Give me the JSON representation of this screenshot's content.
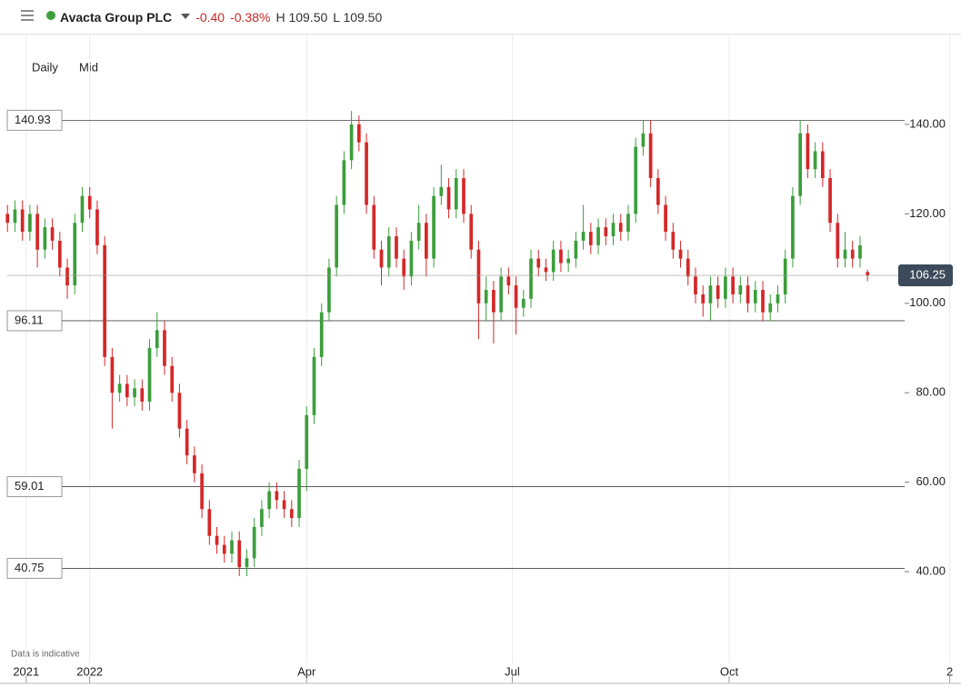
{
  "header": {
    "title": "Avacta Group PLC",
    "change": "-0.40",
    "change_pct": "-0.38%",
    "high": "H 109.50",
    "low": "L 109.50"
  },
  "chart_data": {
    "type": "candlestick",
    "interval": "Daily",
    "price_type": "Mid",
    "note": "Data is indicative",
    "up_color": "#3c9e3c",
    "down_color": "#d62728",
    "xlim": [
      -2,
      255
    ],
    "ylim": [
      19.5,
      160.1
    ],
    "xticks": [
      {
        "value": 5,
        "label": "2021"
      },
      {
        "value": 22,
        "label": "2022"
      },
      {
        "value": 80,
        "label": "Apr"
      },
      {
        "value": 135,
        "label": "Jul"
      },
      {
        "value": 193,
        "label": "Oct"
      },
      {
        "value": 252,
        "label": "2"
      }
    ],
    "yticks": [
      {
        "value": 40,
        "label": "40.00"
      },
      {
        "value": 60,
        "label": "60.00"
      },
      {
        "value": 80,
        "label": "80.00"
      },
      {
        "value": 100,
        "label": "100.00"
      },
      {
        "value": 120,
        "label": "120.00"
      },
      {
        "value": 140,
        "label": "140.00"
      }
    ],
    "reference_lines": [
      140.93,
      96.11,
      59.01,
      40.75
    ],
    "grid": true,
    "x": [
      0,
      2,
      4,
      6,
      8,
      10,
      12,
      14,
      16,
      18,
      20,
      22,
      24,
      26,
      28,
      30,
      32,
      34,
      36,
      38,
      40,
      42,
      44,
      46,
      48,
      50,
      52,
      54,
      56,
      58,
      60,
      62,
      64,
      66,
      68,
      70,
      72,
      74,
      76,
      78,
      80,
      82,
      84,
      86,
      88,
      90,
      92,
      94,
      96,
      98,
      100,
      102,
      104,
      106,
      108,
      110,
      112,
      114,
      116,
      118,
      120,
      122,
      124,
      126,
      128,
      130,
      132,
      134,
      136,
      138,
      140,
      142,
      144,
      146,
      148,
      150,
      152,
      154,
      156,
      158,
      160,
      162,
      164,
      166,
      168,
      170,
      172,
      174,
      176,
      178,
      180,
      182,
      184,
      186,
      188,
      190,
      192,
      194,
      196,
      198,
      200,
      202,
      204,
      206,
      208,
      210,
      212,
      214,
      216,
      218,
      220,
      222,
      224,
      226,
      228,
      230
    ],
    "open": [
      120,
      118,
      121,
      116,
      120,
      112,
      117,
      114,
      108,
      104,
      118,
      124,
      121,
      113,
      88,
      80,
      82,
      79,
      81,
      78,
      90,
      94,
      86,
      80,
      72,
      66,
      62,
      54,
      48,
      46,
      44,
      47,
      41,
      43,
      50,
      54,
      58,
      56,
      54,
      52,
      63,
      75,
      88,
      98,
      108,
      122,
      132,
      140,
      136,
      122,
      112,
      108,
      115,
      110,
      106,
      114,
      118,
      110,
      124,
      126,
      121,
      128,
      120,
      112,
      100,
      103,
      98,
      106,
      104,
      99,
      101,
      110,
      108,
      107,
      112,
      109,
      110,
      114,
      116,
      113,
      117,
      115,
      118,
      116,
      120,
      135,
      138,
      128,
      122,
      116,
      112,
      110,
      106,
      102,
      100,
      104,
      101,
      106,
      102,
      104,
      100,
      103,
      98,
      100,
      102,
      110,
      124,
      138,
      130,
      134,
      128,
      118,
      110,
      112,
      110,
      107
    ],
    "high": [
      122,
      123,
      123,
      122,
      122,
      119,
      119,
      116,
      110,
      120,
      126,
      126,
      123,
      115,
      90,
      84,
      84,
      83,
      83,
      92,
      98,
      96,
      88,
      82,
      74,
      68,
      64,
      56,
      50,
      48,
      49,
      49,
      45,
      52,
      56,
      60,
      60,
      58,
      56,
      65,
      77,
      90,
      100,
      110,
      124,
      134,
      143,
      142,
      138,
      124,
      114,
      117,
      117,
      112,
      116,
      122,
      120,
      126,
      131,
      128,
      130,
      130,
      122,
      114,
      106,
      105,
      108,
      108,
      106,
      103,
      112,
      112,
      110,
      114,
      114,
      112,
      116,
      122,
      118,
      119,
      119,
      120,
      120,
      122,
      137,
      141,
      141,
      130,
      124,
      118,
      114,
      112,
      108,
      104,
      106,
      106,
      108,
      108,
      106,
      106,
      105,
      105,
      102,
      104,
      112,
      126,
      141,
      140,
      136,
      136,
      130,
      120,
      116,
      114,
      115,
      107.5
    ],
    "low": [
      116,
      116,
      114,
      114,
      108,
      110,
      112,
      106,
      101,
      102,
      116,
      119,
      111,
      86,
      72,
      78,
      77,
      77,
      76,
      76,
      88,
      84,
      78,
      70,
      64,
      60,
      52,
      46,
      44,
      42,
      42,
      39,
      39,
      41,
      48,
      52,
      54,
      52,
      50,
      50,
      58,
      73,
      86,
      96,
      106,
      120,
      130,
      134,
      120,
      110,
      104,
      106,
      108,
      103,
      104,
      112,
      106,
      108,
      122,
      119,
      119,
      118,
      110,
      92,
      96,
      91,
      96,
      102,
      93,
      97,
      99,
      106,
      105,
      105,
      107,
      107,
      108,
      112,
      111,
      111,
      113,
      113,
      114,
      114,
      118,
      133,
      126,
      120,
      114,
      110,
      108,
      104,
      100,
      97,
      96,
      99,
      99,
      100,
      100,
      98,
      98,
      96,
      96,
      98,
      100,
      108,
      122,
      128,
      128,
      126,
      116,
      108,
      108,
      108,
      108,
      105
    ],
    "close": [
      118,
      121,
      116,
      120,
      112,
      117,
      114,
      108,
      104,
      118,
      124,
      121,
      113,
      88,
      80,
      82,
      79,
      81,
      78,
      90,
      94,
      86,
      80,
      72,
      66,
      62,
      54,
      48,
      46,
      44,
      47,
      41,
      43,
      50,
      54,
      58,
      56,
      54,
      52,
      63,
      75,
      88,
      98,
      108,
      122,
      132,
      140,
      136,
      122,
      112,
      108,
      115,
      110,
      106,
      114,
      118,
      110,
      124,
      126,
      121,
      128,
      120,
      112,
      100,
      103,
      98,
      106,
      104,
      99,
      101,
      110,
      108,
      107,
      112,
      109,
      110,
      114,
      116,
      113,
      117,
      115,
      118,
      116,
      120,
      135,
      138,
      128,
      122,
      116,
      112,
      110,
      106,
      102,
      100,
      104,
      101,
      106,
      102,
      104,
      100,
      103,
      98,
      100,
      102,
      110,
      124,
      138,
      130,
      134,
      128,
      118,
      110,
      112,
      110,
      113,
      106.25
    ]
  }
}
